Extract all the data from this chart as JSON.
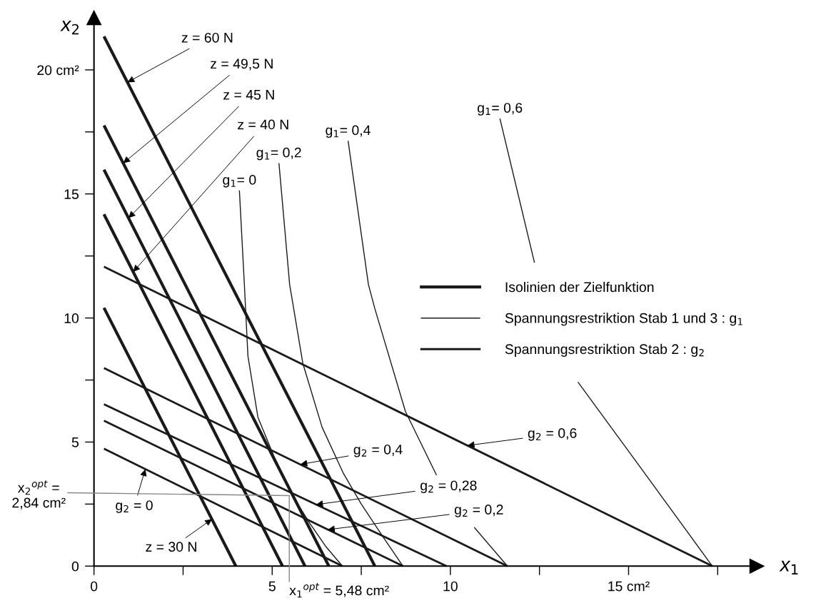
{
  "chart_data": {
    "type": "line",
    "xlabel": "x$_{1}$",
    "ylabel": "x$_{2}$",
    "xlim": [
      0,
      18.6
    ],
    "ylim": [
      0,
      22.1
    ],
    "xticks": [
      0,
      {
        "value": 2.5,
        "label": null
      },
      5,
      {
        "value": 7.5,
        "label": null
      },
      10,
      {
        "value": 12.5,
        "label": null
      },
      {
        "value": 15,
        "label": "15 cm²"
      },
      {
        "value": 17.5,
        "label": null
      }
    ],
    "yticks": [
      0,
      {
        "value": 2.5,
        "label": null
      },
      5,
      {
        "value": 7.5,
        "label": null
      },
      10,
      {
        "value": 12.5,
        "label": null
      },
      15,
      {
        "value": 17.5,
        "label": null
      },
      {
        "value": 20,
        "label": "20 cm²"
      }
    ],
    "grid": false,
    "legend": "right",
    "marker": "none",
    "line_style": "solid",
    "series": [
      {
        "name": "Isolinien der Zielfunktion",
        "color": "#1a1a1a",
        "x": [
          0.28,
          3.98,
          null,
          0.28,
          5.29,
          null,
          0.28,
          5.92,
          null,
          0.28,
          6.59,
          null,
          0.28,
          7.88
        ],
        "values": [
          10.41,
          0,
          null,
          14.18,
          0,
          null,
          15.98,
          0,
          null,
          17.76,
          0,
          null,
          21.35,
          0
        ]
      },
      {
        "name": "Spannungsrestriktion Stab 1 und 3 : g$_{1}$",
        "color": "#1a1a1a",
        "x": [
          4.08,
          4.22,
          4.32,
          4.6,
          5.05,
          5.5,
          6.05,
          6.5,
          6.97,
          null,
          5.19,
          5.49,
          5.86,
          6.4,
          6.99,
          7.5,
          8.1,
          8.67,
          null,
          7.13,
          7.7,
          7.88,
          8.74,
          9.61,
          null,
          10.67,
          11.6,
          null,
          11.39,
          12.36,
          null,
          13.58,
          15.32,
          17.35
        ],
        "values": [
          15.14,
          11.35,
          8.46,
          6.0,
          4.42,
          3.0,
          1.74,
          0.8,
          0,
          null,
          16.24,
          11.35,
          8.17,
          5.6,
          3.76,
          2.5,
          1.2,
          0,
          null,
          17.14,
          11.35,
          10.38,
          6.23,
          3.67,
          null,
          1.56,
          0,
          null,
          18.04,
          12.23,
          null,
          7.42,
          4.0,
          0
        ]
      },
      {
        "name": "Spannungsrestriktion Stab 2 : g$_{2}$",
        "color": "#1a1a1a",
        "x": [
          0.28,
          6.97,
          null,
          0.28,
          8.67,
          null,
          0.28,
          9.89,
          null,
          0.28,
          11.6,
          null,
          0.28,
          17.35
        ],
        "values": [
          4.73,
          0,
          null,
          5.86,
          0,
          null,
          6.52,
          0,
          null,
          7.98,
          0,
          null,
          12.07,
          0
        ]
      }
    ],
    "annotations": [
      {
        "text": "z = 60 N",
        "x": 0.94,
        "y": 19.5
      },
      {
        "text": "z = 49,5 N",
        "x": 0.82,
        "y": 16.24
      },
      {
        "text": "z = 45 N",
        "x": 0.97,
        "y": 14.03
      },
      {
        "text": "z = 40 N",
        "x": 1.1,
        "y": 11.86
      },
      {
        "text": "z = 30 N",
        "x": 3.31,
        "y": 1.89
      },
      {
        "text": "g$_{2}$ = 0",
        "x": 1.44,
        "y": 3.91
      },
      {
        "text": "g$_{2}$ = 0,4",
        "x": 5.79,
        "y": 4.1
      },
      {
        "text": "g$_{2}$ = 0,28",
        "x": 6.23,
        "y": 2.48
      },
      {
        "text": "g$_{2}$ = 0,2",
        "x": 6.56,
        "y": 1.47
      },
      {
        "text": "g$_{2}$ = 0,6",
        "x": 10.48,
        "y": 4.86
      },
      {
        "text": "g$_{1}$= 0",
        "x": 4.08,
        "y": 15.14
      },
      {
        "text": "g$_{1}$= 0,2",
        "x": 5.19,
        "y": 16.24
      },
      {
        "text": "g$_{1}$= 0,4",
        "x": 7.13,
        "y": 17.14
      },
      {
        "text": "g$_{1}$= 0,6",
        "x": 11.39,
        "y": 18.04
      },
      {
        "text": "x$_{1}$$^{opt}$ = 5,48 cm²",
        "x": 5.48,
        "y": 2.84
      },
      {
        "text": "x$_{2}$$^{opt}$ =\n2,84 cm²",
        "x": 5.48,
        "y": 2.84
      }
    ]
  }
}
